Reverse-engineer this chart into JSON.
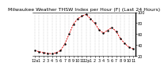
{
  "title": "Milwaukee Weather THSW Index per Hour (F) (Last 24 Hours)",
  "x_values": [
    0,
    1,
    2,
    3,
    4,
    5,
    6,
    7,
    8,
    9,
    10,
    11,
    12,
    13,
    14,
    15,
    16,
    17,
    18,
    19,
    20,
    21,
    22,
    23
  ],
  "y_values": [
    30,
    28,
    26,
    25,
    24,
    26,
    30,
    42,
    60,
    78,
    88,
    93,
    96,
    88,
    80,
    68,
    62,
    67,
    72,
    65,
    52,
    43,
    36,
    33
  ],
  "y_min": 20,
  "y_max": 100,
  "line_color": "#dd0000",
  "marker_color": "#000000",
  "bg_color": "#ffffff",
  "plot_bg": "#ffffff",
  "title_fontsize": 4.5,
  "tick_fontsize": 3.5,
  "x_tick_labels": [
    "12a",
    "1",
    "2",
    "3",
    "4",
    "5",
    "6",
    "7",
    "8",
    "9",
    "10",
    "11",
    "12p",
    "1",
    "2",
    "3",
    "4",
    "5",
    "6",
    "7",
    "8",
    "9",
    "10",
    "11"
  ],
  "grid_color": "#999999",
  "right_y_ticks": [
    20,
    40,
    60,
    80,
    100
  ],
  "right_y_labels": [
    "20",
    "40",
    "60",
    "80",
    "100"
  ]
}
